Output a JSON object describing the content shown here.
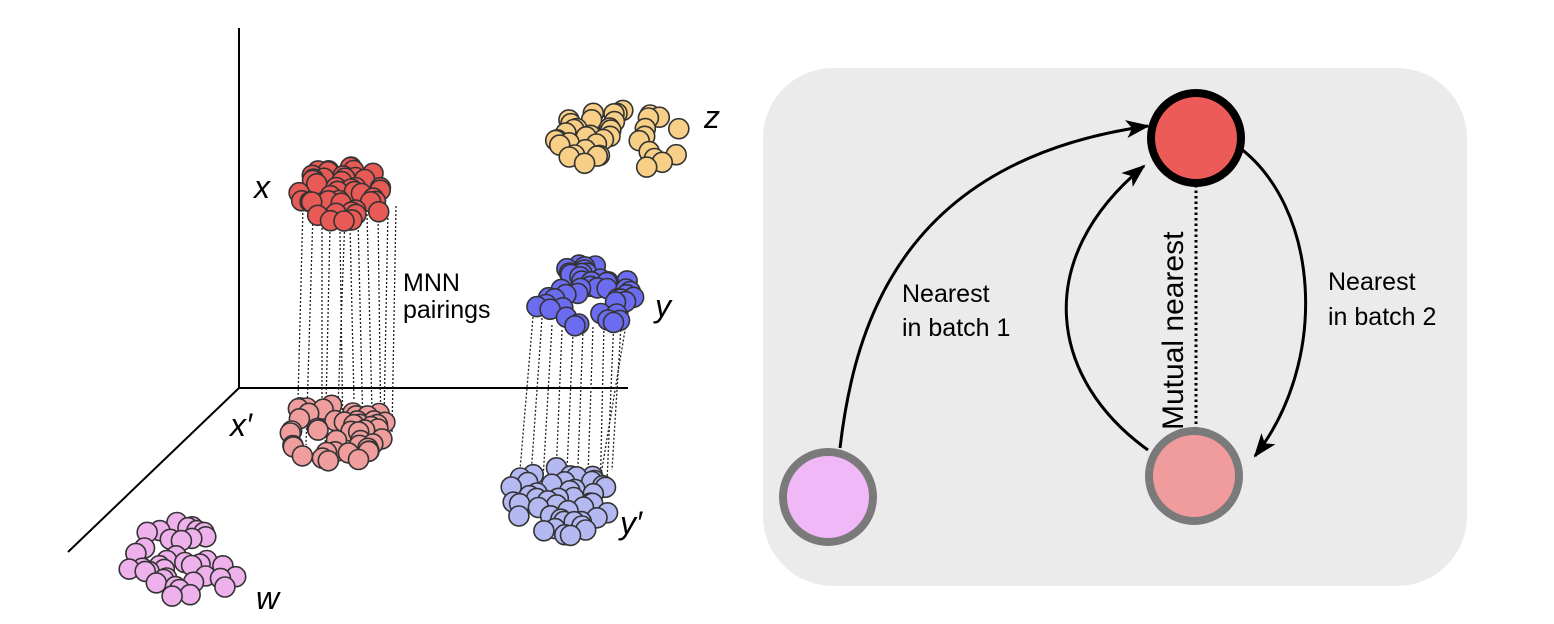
{
  "left_panel": {
    "clusters": [
      {
        "label": "x",
        "color": "#e85a55",
        "role": "batch-2-cluster"
      },
      {
        "label": "z",
        "color": "#f8cf86",
        "role": "batch-2-cluster"
      },
      {
        "label": "y",
        "color": "#6b6cf0",
        "role": "batch-2-cluster"
      },
      {
        "label": "x′",
        "color": "#f09d9d",
        "role": "batch-1-cluster"
      },
      {
        "label": "y′",
        "color": "#b4b9f2",
        "role": "batch-1-cluster"
      },
      {
        "label": "w",
        "color": "#eeb1ec",
        "role": "batch-1-cluster"
      }
    ],
    "annotation_line1": "MNN",
    "annotation_line2": "pairings"
  },
  "right_panel": {
    "background": "#ebebeb",
    "top_node_color": "#ec5b57",
    "left_node_color": "#f1b8f7",
    "right_node_color": "#f09b9c",
    "edge_left_line1": "Nearest",
    "edge_left_line2": "in batch 1",
    "edge_right_line1": "Nearest",
    "edge_right_line2": "in batch 2",
    "mutual_label": "Mutual nearest"
  }
}
